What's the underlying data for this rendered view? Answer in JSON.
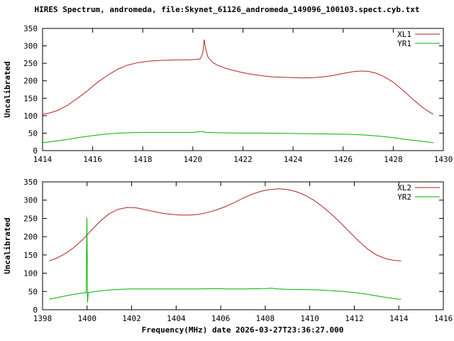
{
  "title": "HIRES Spectrum, andromeda, file:Skynet_61126_andromeda_149096_100103.spect.cyb.txt",
  "xlabel": "Frequency(MHz) date 2026-03-27T23:36:27.000",
  "colors": {
    "background": "#ffffff",
    "axis": "#000000",
    "series_red": "#b22222",
    "series_green": "#00b000"
  },
  "chart_data": [
    {
      "type": "line",
      "title": "",
      "ylabel": "Uncalibrated",
      "xlabel": "",
      "xlim": [
        1414,
        1430
      ],
      "ylim": [
        0,
        350
      ],
      "xticks": [
        1414,
        1416,
        1418,
        1420,
        1422,
        1424,
        1426,
        1428,
        1430
      ],
      "yticks": [
        0,
        50,
        100,
        150,
        200,
        250,
        300,
        350
      ],
      "grid": false,
      "legend_position": "top-right",
      "series": [
        {
          "name": "XL1",
          "color": "#b22222",
          "points": [
            [
              1414.0,
              104
            ],
            [
              1414.3,
              108
            ],
            [
              1414.6,
              115
            ],
            [
              1415.0,
              130
            ],
            [
              1415.4,
              150
            ],
            [
              1415.8,
              172
            ],
            [
              1416.2,
              196
            ],
            [
              1416.6,
              216
            ],
            [
              1417.0,
              233
            ],
            [
              1417.4,
              245
            ],
            [
              1417.8,
              252
            ],
            [
              1418.2,
              256
            ],
            [
              1418.6,
              258
            ],
            [
              1419.0,
              259
            ],
            [
              1419.4,
              260
            ],
            [
              1419.8,
              260
            ],
            [
              1420.1,
              261
            ],
            [
              1420.3,
              263
            ],
            [
              1420.4,
              280
            ],
            [
              1420.45,
              318
            ],
            [
              1420.5,
              295
            ],
            [
              1420.6,
              268
            ],
            [
              1420.8,
              252
            ],
            [
              1421.0,
              244
            ],
            [
              1421.3,
              236
            ],
            [
              1421.6,
              230
            ],
            [
              1422.0,
              223
            ],
            [
              1422.4,
              218
            ],
            [
              1422.8,
              214
            ],
            [
              1423.2,
              211
            ],
            [
              1423.6,
              210
            ],
            [
              1424.0,
              209
            ],
            [
              1424.4,
              208
            ],
            [
              1424.8,
              209
            ],
            [
              1425.2,
              211
            ],
            [
              1425.6,
              215
            ],
            [
              1426.0,
              221
            ],
            [
              1426.4,
              226
            ],
            [
              1426.7,
              228
            ],
            [
              1427.0,
              227
            ],
            [
              1427.3,
              222
            ],
            [
              1427.6,
              213
            ],
            [
              1428.0,
              196
            ],
            [
              1428.4,
              172
            ],
            [
              1428.8,
              146
            ],
            [
              1429.2,
              122
            ],
            [
              1429.5,
              108
            ],
            [
              1429.6,
              104
            ]
          ]
        },
        {
          "name": "YR1",
          "color": "#00b000",
          "points": [
            [
              1414.0,
              23
            ],
            [
              1414.5,
              27
            ],
            [
              1415.0,
              32
            ],
            [
              1415.5,
              38
            ],
            [
              1416.0,
              43
            ],
            [
              1416.5,
              47
            ],
            [
              1417.0,
              50
            ],
            [
              1417.5,
              51
            ],
            [
              1418.0,
              52
            ],
            [
              1419.0,
              52
            ],
            [
              1420.0,
              52
            ],
            [
              1420.4,
              55
            ],
            [
              1420.5,
              52
            ],
            [
              1421.0,
              51
            ],
            [
              1422.0,
              50
            ],
            [
              1423.0,
              50
            ],
            [
              1424.0,
              49
            ],
            [
              1425.0,
              48
            ],
            [
              1426.0,
              47
            ],
            [
              1426.5,
              46
            ],
            [
              1427.0,
              44
            ],
            [
              1427.5,
              41
            ],
            [
              1428.0,
              37
            ],
            [
              1428.5,
              32
            ],
            [
              1429.0,
              28
            ],
            [
              1429.6,
              23
            ]
          ]
        }
      ]
    },
    {
      "type": "line",
      "title": "",
      "ylabel": "Uncalibrated",
      "xlabel": "Frequency(MHz) date 2026-03-27T23:36:27.000",
      "xlim": [
        1398,
        1416
      ],
      "ylim": [
        0,
        350
      ],
      "xticks": [
        1398,
        1400,
        1402,
        1404,
        1406,
        1408,
        1410,
        1412,
        1414,
        1416
      ],
      "yticks": [
        0,
        50,
        100,
        150,
        200,
        250,
        300,
        350
      ],
      "grid": false,
      "legend_position": "top-right",
      "series": [
        {
          "name": "XL2",
          "color": "#b22222",
          "points": [
            [
              1398.3,
              134
            ],
            [
              1398.6,
              140
            ],
            [
              1399.0,
              153
            ],
            [
              1399.4,
              170
            ],
            [
              1399.8,
              192
            ],
            [
              1400.2,
              218
            ],
            [
              1400.6,
              243
            ],
            [
              1401.0,
              263
            ],
            [
              1401.4,
              275
            ],
            [
              1401.8,
              280
            ],
            [
              1402.2,
              279
            ],
            [
              1402.6,
              274
            ],
            [
              1403.0,
              269
            ],
            [
              1403.4,
              264
            ],
            [
              1403.8,
              261
            ],
            [
              1404.2,
              259
            ],
            [
              1404.6,
              259
            ],
            [
              1405.0,
              261
            ],
            [
              1405.4,
              266
            ],
            [
              1405.8,
              273
            ],
            [
              1406.2,
              282
            ],
            [
              1406.6,
              293
            ],
            [
              1407.0,
              305
            ],
            [
              1407.4,
              316
            ],
            [
              1407.8,
              324
            ],
            [
              1408.2,
              329
            ],
            [
              1408.6,
              331
            ],
            [
              1409.0,
              329
            ],
            [
              1409.4,
              323
            ],
            [
              1409.8,
              313
            ],
            [
              1410.2,
              299
            ],
            [
              1410.6,
              281
            ],
            [
              1411.0,
              260
            ],
            [
              1411.4,
              237
            ],
            [
              1411.8,
              212
            ],
            [
              1412.2,
              188
            ],
            [
              1412.6,
              166
            ],
            [
              1413.0,
              150
            ],
            [
              1413.4,
              140
            ],
            [
              1413.8,
              135
            ],
            [
              1414.1,
              134
            ]
          ]
        },
        {
          "name": "YR2",
          "color": "#00b000",
          "points": [
            [
              1398.3,
              29
            ],
            [
              1398.8,
              35
            ],
            [
              1399.3,
              41
            ],
            [
              1399.7,
              45
            ],
            [
              1399.93,
              47
            ],
            [
              1399.96,
              46
            ],
            [
              1399.99,
              252
            ],
            [
              1400.02,
              20
            ],
            [
              1400.05,
              47
            ],
            [
              1400.5,
              51
            ],
            [
              1401.0,
              54
            ],
            [
              1401.5,
              56
            ],
            [
              1402.0,
              57
            ],
            [
              1403.0,
              57
            ],
            [
              1404.0,
              57
            ],
            [
              1405.0,
              57
            ],
            [
              1405.9,
              58
            ],
            [
              1406.2,
              57
            ],
            [
              1407.0,
              57
            ],
            [
              1408.0,
              58
            ],
            [
              1408.3,
              59
            ],
            [
              1408.6,
              57
            ],
            [
              1409.0,
              56
            ],
            [
              1410.0,
              55
            ],
            [
              1410.5,
              54
            ],
            [
              1411.0,
              52
            ],
            [
              1411.5,
              50
            ],
            [
              1412.0,
              47
            ],
            [
              1412.5,
              43
            ],
            [
              1413.0,
              38
            ],
            [
              1413.5,
              33
            ],
            [
              1414.0,
              29
            ],
            [
              1414.1,
              29
            ]
          ]
        }
      ]
    }
  ]
}
